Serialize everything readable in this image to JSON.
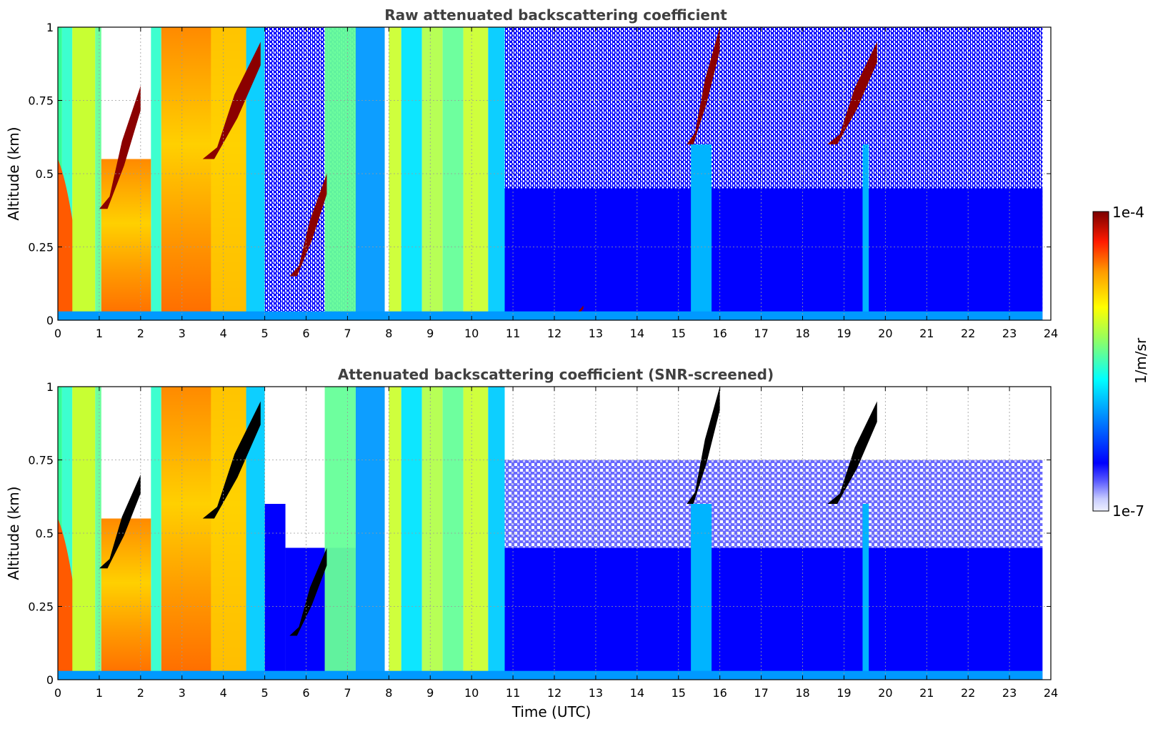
{
  "chart_data": [
    {
      "type": "heatmap",
      "title": "Raw attenuated backscattering coefficient",
      "ylabel": "Altitude (km)",
      "xlabel": "",
      "xlim": [
        0,
        24
      ],
      "ylim": [
        0,
        1
      ],
      "x_ticks": [
        "0",
        "1",
        "2",
        "3",
        "4",
        "5",
        "6",
        "7",
        "8",
        "9",
        "10",
        "11",
        "12",
        "13",
        "14",
        "15",
        "16",
        "17",
        "18",
        "19",
        "20",
        "21",
        "22",
        "23",
        "24"
      ],
      "y_ticks": [
        "0",
        "0.25",
        "0.5",
        "0.75",
        "1"
      ],
      "grid": true,
      "features": [
        {
          "x": [
            0.0,
            0.9
          ],
          "y": [
            0.0,
            1.0
          ],
          "level": "high"
        },
        {
          "x": [
            1.0,
            2.0
          ],
          "y": [
            0.38,
            0.8
          ],
          "level": "very-high"
        },
        {
          "x": [
            2.5,
            4.9
          ],
          "y": [
            0.0,
            1.0
          ],
          "level": "high"
        },
        {
          "x": [
            3.5,
            4.9
          ],
          "y": [
            0.55,
            0.95
          ],
          "level": "very-high"
        },
        {
          "x": [
            5.6,
            6.5
          ],
          "y": [
            0.15,
            0.5
          ],
          "level": "very-high"
        },
        {
          "x": [
            7.3,
            10.7
          ],
          "y": [
            0.0,
            1.0
          ],
          "level": "medium"
        },
        {
          "x": [
            12.4,
            12.7
          ],
          "y": [
            0.0,
            0.05
          ],
          "level": "very-high"
        },
        {
          "x": [
            15.2,
            16.0
          ],
          "y": [
            0.6,
            1.0
          ],
          "level": "very-high"
        },
        {
          "x": [
            18.6,
            19.8
          ],
          "y": [
            0.6,
            0.95
          ],
          "level": "very-high"
        },
        {
          "x": [
            19.4,
            19.6
          ],
          "y": [
            0.0,
            0.6
          ],
          "level": "medium"
        }
      ]
    },
    {
      "type": "heatmap",
      "title": "Attenuated backscattering coefficient (SNR-screened)",
      "ylabel": "Altitude (km)",
      "xlabel": "Time (UTC)",
      "xlim": [
        0,
        24
      ],
      "ylim": [
        0,
        1
      ],
      "x_ticks": [
        "0",
        "1",
        "2",
        "3",
        "4",
        "5",
        "6",
        "7",
        "8",
        "9",
        "10",
        "11",
        "12",
        "13",
        "14",
        "15",
        "16",
        "17",
        "18",
        "19",
        "20",
        "21",
        "22",
        "23",
        "24"
      ],
      "y_ticks": [
        "0",
        "0.25",
        "0.5",
        "0.75",
        "1"
      ],
      "grid": true,
      "features": [
        {
          "x": [
            0.0,
            0.9
          ],
          "y": [
            0.0,
            1.0
          ],
          "level": "high"
        },
        {
          "x": [
            1.0,
            2.0
          ],
          "y": [
            0.38,
            0.7
          ],
          "level": "saturated"
        },
        {
          "x": [
            2.5,
            4.9
          ],
          "y": [
            0.0,
            1.0
          ],
          "level": "high"
        },
        {
          "x": [
            3.5,
            4.9
          ],
          "y": [
            0.55,
            0.95
          ],
          "level": "saturated"
        },
        {
          "x": [
            5.6,
            6.5
          ],
          "y": [
            0.15,
            0.45
          ],
          "level": "saturated"
        },
        {
          "x": [
            7.3,
            10.7
          ],
          "y": [
            0.0,
            1.0
          ],
          "level": "medium"
        },
        {
          "x": [
            15.2,
            16.0
          ],
          "y": [
            0.6,
            1.0
          ],
          "level": "saturated"
        },
        {
          "x": [
            18.6,
            19.8
          ],
          "y": [
            0.6,
            0.95
          ],
          "level": "saturated"
        }
      ]
    }
  ],
  "colorbar": {
    "top_label": "1e-4",
    "bottom_label": "1e-7",
    "unit_label": "1/m/sr",
    "colormap": "jet",
    "colors": [
      "#e9ecff",
      "#0000ff",
      "#00ffff",
      "#ffff00",
      "#ff0000",
      "#800000"
    ]
  }
}
